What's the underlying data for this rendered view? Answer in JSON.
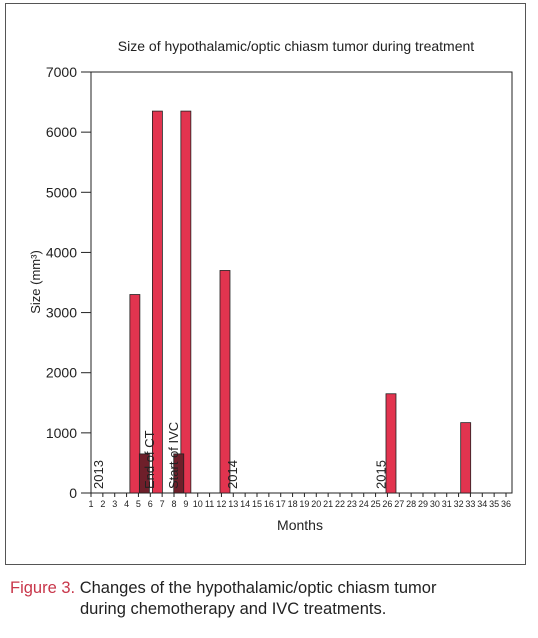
{
  "colors": {
    "tumor_bar": "#e2344f",
    "treatment_bar": "#6e1f2a",
    "axis": "#222222",
    "caption_label": "#c8364a"
  },
  "chart_data": {
    "type": "bar",
    "title": "Size of hypothalamic/optic chiasm tumor during treatment",
    "xlabel": "Months",
    "ylabel": "Size (mm³)",
    "ylim": [
      0,
      7000
    ],
    "yticks": [
      0,
      1000,
      2000,
      3000,
      4000,
      5000,
      6000,
      7000
    ],
    "xlim": [
      1,
      36
    ],
    "x_ticks": [
      "1",
      "2",
      "3",
      "4",
      "5",
      "6",
      "7",
      "8",
      "9",
      "10",
      "11",
      "12",
      "13",
      "14",
      "15",
      "16",
      "17",
      "18",
      "19",
      "20",
      "21",
      "22",
      "23",
      "24",
      "25",
      "26",
      "27",
      "28",
      "29",
      "30",
      "31",
      "32",
      "33",
      "34",
      "35",
      "36"
    ],
    "grid": false,
    "series": [
      {
        "role": "tumor size",
        "color": "#e2344f",
        "points": [
          {
            "month": 4.7,
            "value": 3300
          },
          {
            "month": 6.6,
            "value": 6350
          },
          {
            "month": 9.0,
            "value": 6350
          },
          {
            "month": 12.3,
            "value": 3700
          },
          {
            "month": 26.3,
            "value": 1650
          },
          {
            "month": 32.6,
            "value": 1170
          }
        ]
      },
      {
        "role": "treatment markers",
        "color": "#6e1f2a",
        "points": [
          {
            "month": 5.5,
            "value": 650
          },
          {
            "month": 8.4,
            "value": 650
          }
        ]
      }
    ],
    "annotations": [
      {
        "text": "2013",
        "month": 1.6,
        "kind": "year"
      },
      {
        "text": "2014",
        "month": 12.9,
        "kind": "year"
      },
      {
        "text": "2015",
        "month": 25.4,
        "kind": "year"
      },
      {
        "text": "End of CT",
        "month": 5.9,
        "kind": "event"
      },
      {
        "text": "Start of IVC",
        "month": 7.9,
        "kind": "event"
      }
    ]
  },
  "caption": {
    "label": "Figure 3.",
    "text_line1": " Changes of the hypothalamic/optic chiasm tumor",
    "text_line2": "during chemotherapy and IVC treatments."
  }
}
